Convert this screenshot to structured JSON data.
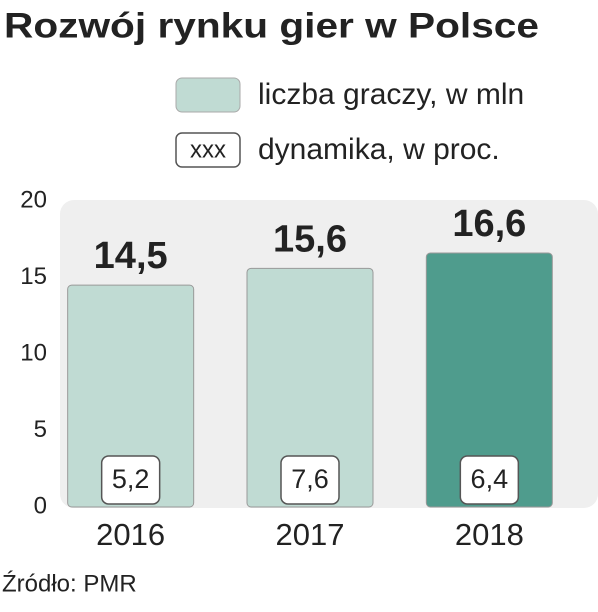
{
  "chart_data": {
    "type": "bar",
    "title": "Rozwój rynku gier w Polsce",
    "categories": [
      "2016",
      "2017",
      "2018"
    ],
    "series": [
      {
        "name": "liczba graczy, w mln",
        "color": "#c0dbd3",
        "colors": [
          "#c0dbd3",
          "#c0dbd3",
          "#4f9c8d"
        ],
        "values": [
          14.5,
          15.6,
          16.6
        ],
        "value_labels": [
          "14,5",
          "15,6",
          "16,6"
        ]
      },
      {
        "name": "dynamika, w proc.",
        "legend_text": "xxx",
        "color": "#ffffff",
        "values": [
          5.2,
          7.6,
          6.4
        ],
        "value_labels": [
          "5,2",
          "7,6",
          "6,4"
        ]
      }
    ],
    "ylim": [
      0,
      20
    ],
    "yticks": [
      0,
      5,
      10,
      15,
      20
    ],
    "source": "Źródło: PMR"
  }
}
